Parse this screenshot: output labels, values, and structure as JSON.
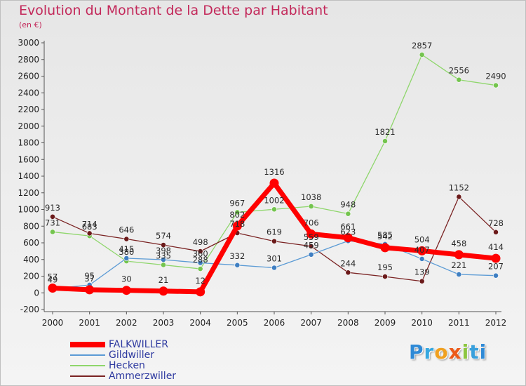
{
  "header": {
    "title": "Evolution du Montant de la Dette par Habitant",
    "subtitle": "(en €)"
  },
  "logo": {
    "text": "Proxiti",
    "letters": [
      "P",
      "r",
      "o",
      "x",
      "i",
      "t",
      "i"
    ]
  },
  "chart_data": {
    "type": "line",
    "title": "Evolution du Montant de la Dette par Habitant",
    "subtitle": "(en €)",
    "xlabel": "",
    "ylabel": "",
    "x": [
      "2000",
      "2001",
      "2002",
      "2003",
      "2004",
      "2005",
      "2006",
      "2007",
      "2008",
      "2009",
      "2010",
      "2011",
      "2012"
    ],
    "ylim": [
      -200,
      3000
    ],
    "yticks": [
      -200,
      0,
      200,
      400,
      600,
      800,
      1000,
      1200,
      1400,
      1600,
      1800,
      2000,
      2200,
      2400,
      2600,
      2800,
      3000
    ],
    "grid": false,
    "legend_position": "bottom-left",
    "series": [
      {
        "name": "Hecken",
        "color": "#8ed66b",
        "marker_color": "#74c44e",
        "values": [
          731,
          683,
          380,
          335,
          288,
          967,
          1002,
          1038,
          948,
          1821,
          2857,
          2556,
          2490
        ]
      },
      {
        "name": "Ammerzwiller",
        "color": "#7a2323",
        "marker_color": "#6b1a1a",
        "values": [
          913,
          714,
          646,
          574,
          498,
          718,
          619,
          559,
          244,
          195,
          139,
          1152,
          728
        ]
      },
      {
        "name": "Gildwiller",
        "color": "#5b9bd5",
        "marker_color": "#3f7fc2",
        "values": [
          49,
          95,
          415,
          398,
          360,
          332,
          301,
          459,
          623,
          585,
          407,
          221,
          207
        ]
      },
      {
        "name": "FALKWILLER",
        "color": "#ff0000",
        "marker_color": "#ff0000",
        "values": [
          57,
          37,
          30,
          21,
          12,
          802,
          1316,
          706,
          661,
          542,
          504,
          458,
          414
        ]
      }
    ],
    "legend_order": [
      "FALKWILLER",
      "Gildwiller",
      "Hecken",
      "Ammerzwiller"
    ]
  }
}
